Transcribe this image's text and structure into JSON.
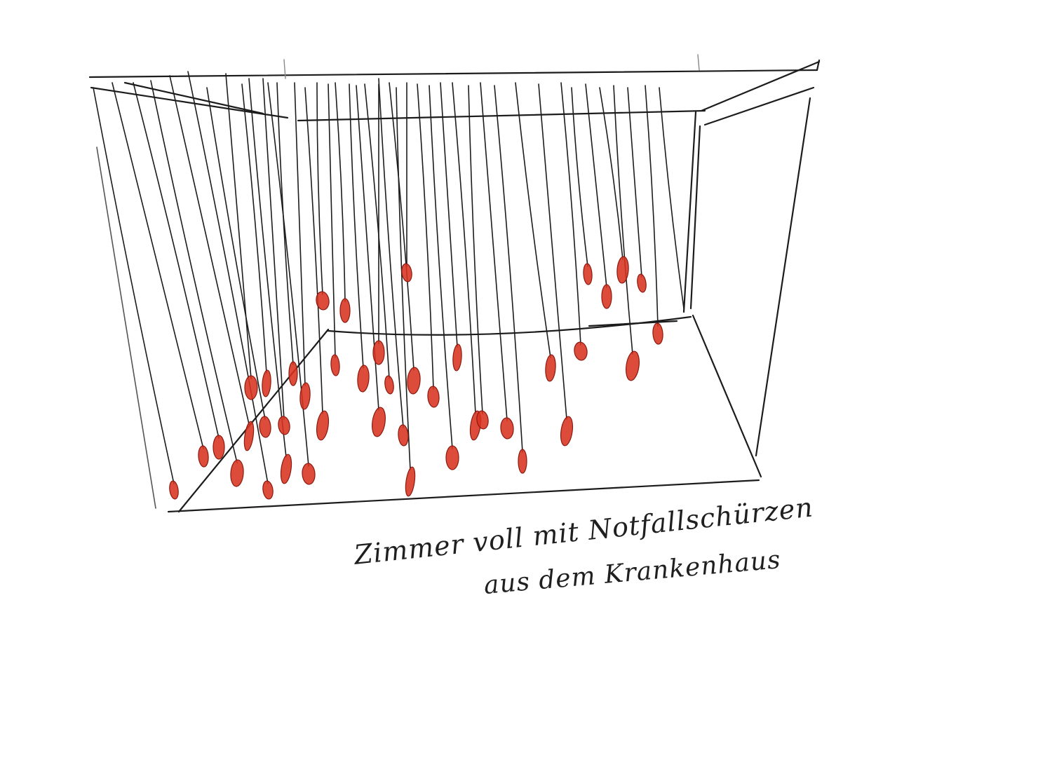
{
  "caption": {
    "line1": "Zimmer voll mit Notfallschürzen",
    "line2": "aus dem Krankenhaus"
  },
  "colors": {
    "ink": "#1c1c1c",
    "pencil_gray": "#6e6e6e",
    "red_marker": "#d8321f",
    "paper": "#ffffff"
  }
}
